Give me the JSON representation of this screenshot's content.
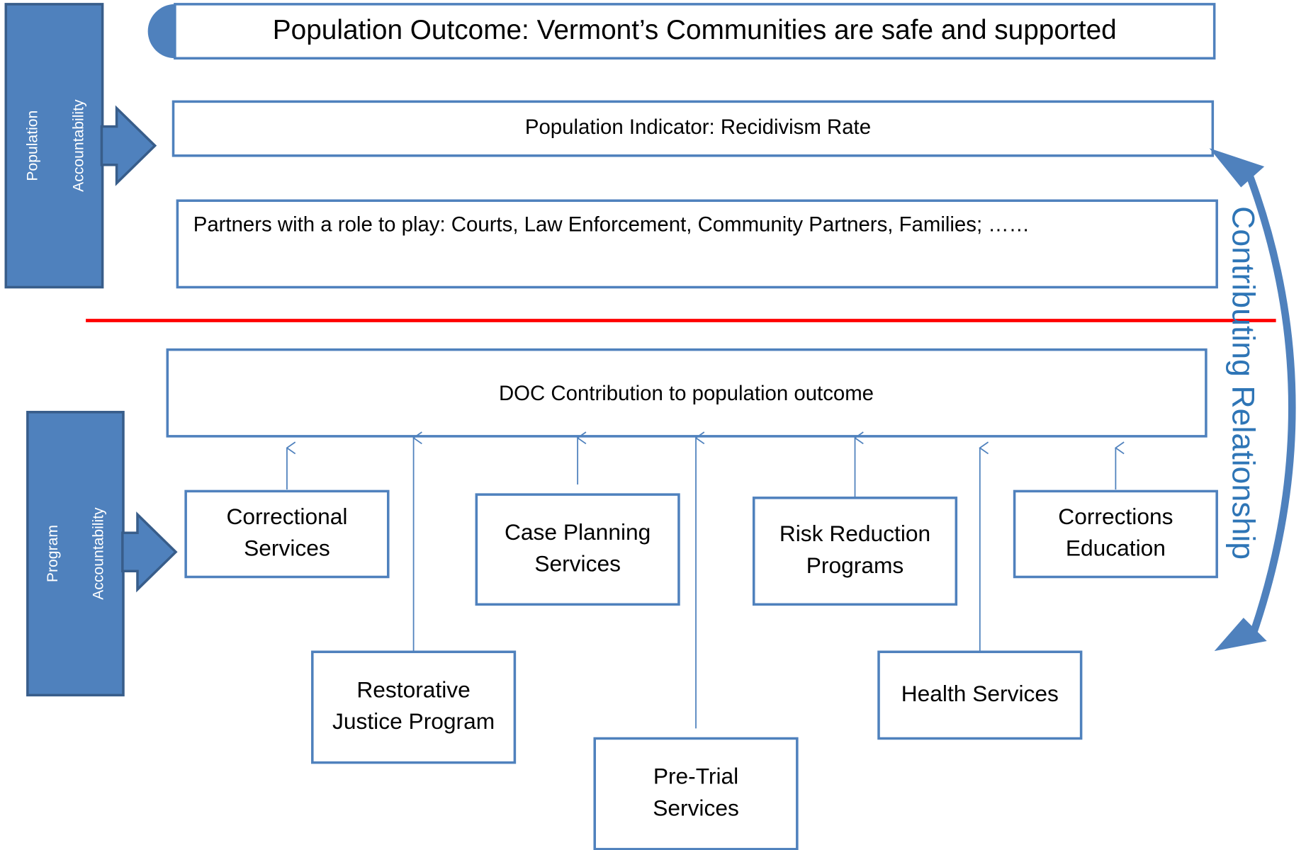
{
  "side_labels": {
    "population": [
      "Population",
      "Accountability"
    ],
    "program": [
      "Program",
      "Accountability"
    ]
  },
  "outcome": "Population Outcome: Vermont’s Communities are safe and supported",
  "indicator": "Population Indicator: Recidivism Rate",
  "partners": "Partners with a role to play: Courts, Law Enforcement, Community Partners, Families;  ……",
  "doc_contribution": "DOC Contribution to population outcome",
  "relationship": "Contributing Relationship",
  "programs": [
    {
      "lines": [
        "Correctional",
        "Services"
      ]
    },
    {
      "lines": [
        "Restorative",
        "Justice Program"
      ]
    },
    {
      "lines": [
        "Case Planning",
        "Services"
      ]
    },
    {
      "lines": [
        "Pre-Trial",
        "Services"
      ]
    },
    {
      "lines": [
        "Risk Reduction",
        "Programs"
      ]
    },
    {
      "lines": [
        "Health Services"
      ]
    },
    {
      "lines": [
        "Corrections",
        "Education"
      ]
    }
  ]
}
